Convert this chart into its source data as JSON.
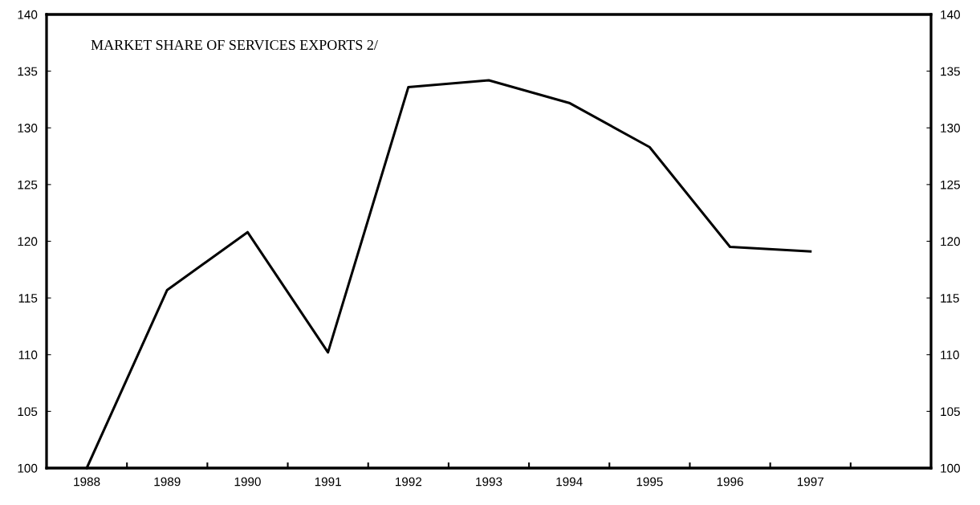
{
  "chart_data": {
    "type": "line",
    "title": "MARKET SHARE OF SERVICES EXPORTS 2/",
    "categories": [
      "1988",
      "1989",
      "1990",
      "1991",
      "1992",
      "1993",
      "1994",
      "1995",
      "1996",
      "1997",
      null
    ],
    "series": [
      {
        "color": "#000000",
        "values": [
          100,
          115.7,
          120.8,
          110.2,
          133.6,
          134.2,
          132.2,
          128.3,
          119.5,
          119.1,
          null
        ]
      }
    ],
    "ylim": [
      100,
      140
    ],
    "yticks": [
      100,
      105,
      110,
      115,
      120,
      125,
      130,
      135,
      140
    ],
    "y2lim": [
      100,
      140
    ],
    "y2ticks": [
      100,
      105,
      110,
      115,
      120,
      125,
      130,
      135,
      140
    ],
    "grid": false,
    "legend": false,
    "marker": "none",
    "line_style": "solid"
  }
}
